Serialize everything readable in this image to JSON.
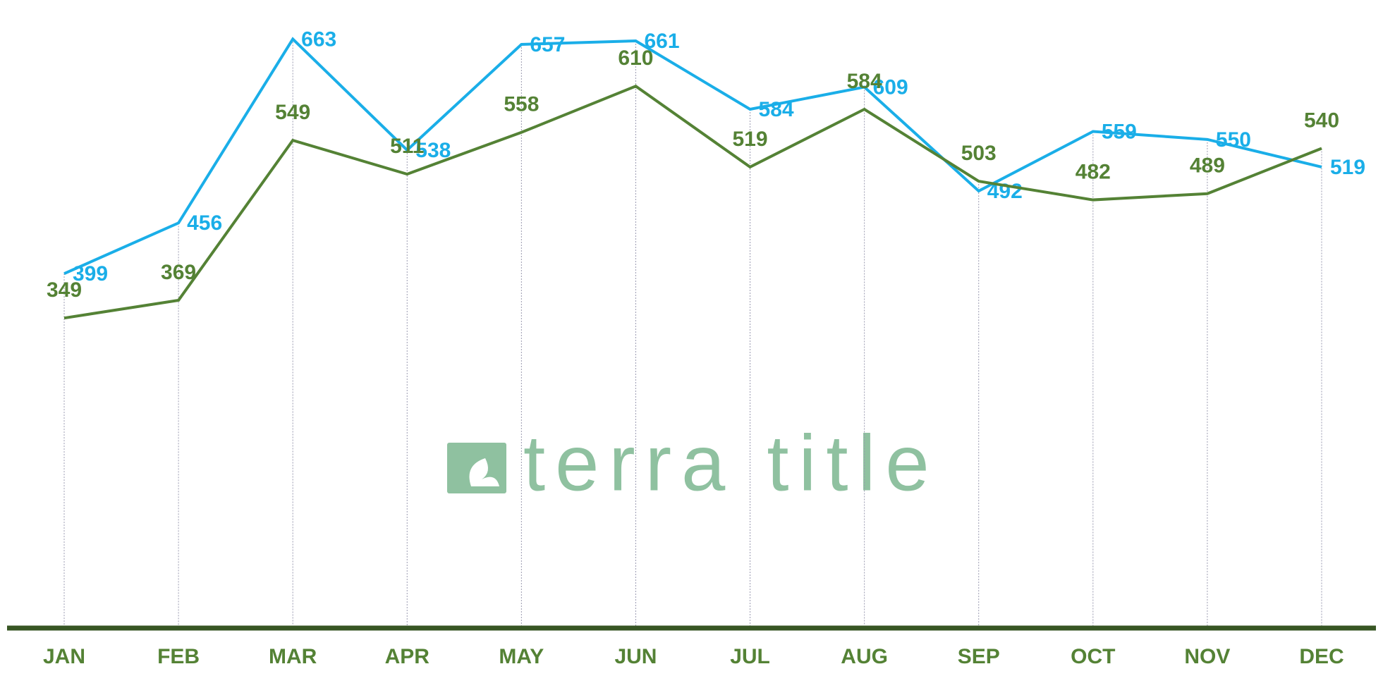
{
  "chart_data": {
    "type": "line",
    "categories": [
      "JAN",
      "FEB",
      "MAR",
      "APR",
      "MAY",
      "JUN",
      "JUL",
      "AUG",
      "SEP",
      "OCT",
      "NOV",
      "DEC"
    ],
    "series": [
      {
        "color": "#1aaee8",
        "values": [
          399,
          456,
          663,
          538,
          657,
          661,
          584,
          609,
          492,
          559,
          550,
          519
        ]
      },
      {
        "color": "#548235",
        "values": [
          349,
          369,
          549,
          511,
          558,
          610,
          519,
          584,
          503,
          482,
          489,
          540
        ]
      }
    ],
    "ylim": [
      0,
      707
    ],
    "watermark": "terra title"
  }
}
